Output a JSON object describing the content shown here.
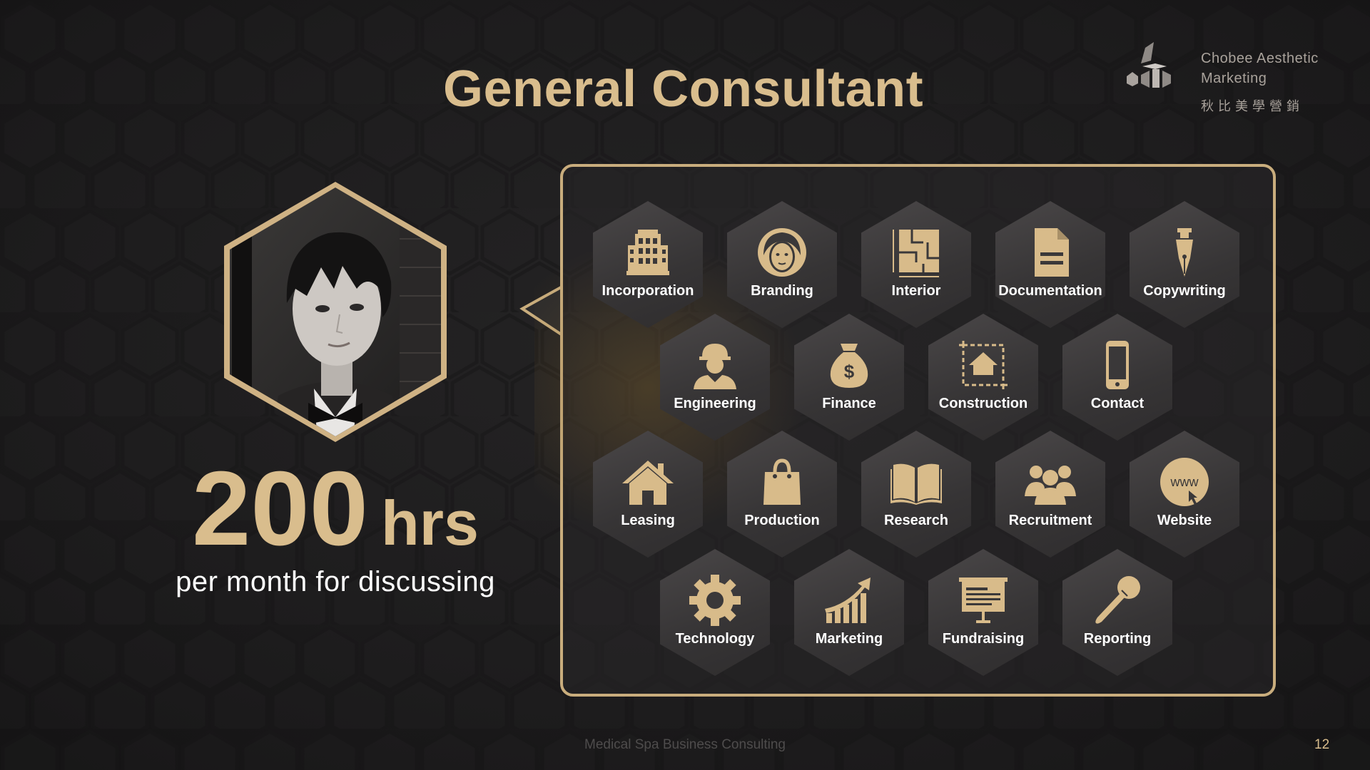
{
  "slide": {
    "title": "General Consultant",
    "page_number": "12",
    "footer": "Medical Spa Business Consulting"
  },
  "brand": {
    "name_line1": "Chobee Aesthetic",
    "name_line2": "Marketing",
    "name_cn": "秋比美學營銷"
  },
  "stats": {
    "number": "200",
    "unit": "hrs",
    "caption": "per month for discussing"
  },
  "services": [
    {
      "label": "Incorporation",
      "icon": "building-icon"
    },
    {
      "label": "Branding",
      "icon": "woman-face-icon"
    },
    {
      "label": "Interior",
      "icon": "floorplan-icon"
    },
    {
      "label": "Documentation",
      "icon": "document-icon"
    },
    {
      "label": "Copywriting",
      "icon": "fountain-pen-icon"
    },
    {
      "label": "Engineering",
      "icon": "engineer-icon"
    },
    {
      "label": "Finance",
      "icon": "money-bag-icon"
    },
    {
      "label": "Construction",
      "icon": "house-blueprint-icon"
    },
    {
      "label": "Contact",
      "icon": "phone-icon"
    },
    {
      "label": "Leasing",
      "icon": "house-icon"
    },
    {
      "label": "Production",
      "icon": "shopping-bag-icon"
    },
    {
      "label": "Research",
      "icon": "open-book-icon"
    },
    {
      "label": "Recruitment",
      "icon": "people-group-icon"
    },
    {
      "label": "Website",
      "icon": "www-globe-icon"
    },
    {
      "label": "Technology",
      "icon": "gear-icon"
    },
    {
      "label": "Marketing",
      "icon": "growth-chart-icon"
    },
    {
      "label": "Fundraising",
      "icon": "presentation-board-icon"
    },
    {
      "label": "Reporting",
      "icon": "microphone-icon"
    }
  ],
  "colors": {
    "accent_gold": "#d9bd8d",
    "background": "#1f1e1f",
    "tile": "#3e3c3d"
  }
}
